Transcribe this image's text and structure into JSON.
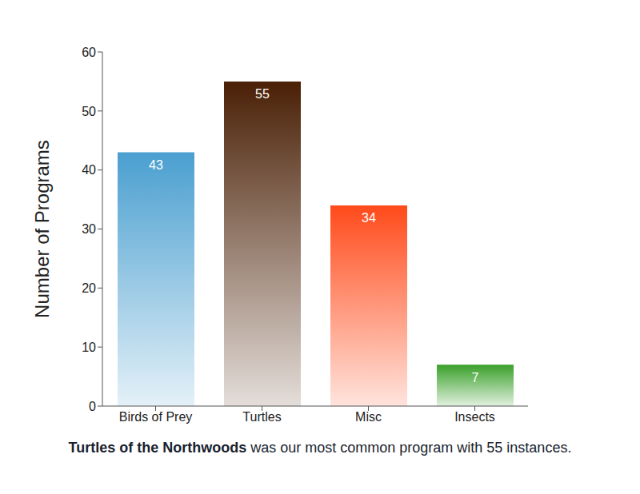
{
  "chart_data": {
    "type": "bar",
    "categories": [
      "Birds of Prey",
      "Turtles",
      "Misc",
      "Insects"
    ],
    "values": [
      43,
      55,
      34,
      7
    ],
    "colors": [
      "#4a9fd0",
      "#4a2006",
      "#ff4a1a",
      "#3aa02a"
    ],
    "ylabel": "Number of Programs",
    "ylim": [
      0,
      60
    ],
    "yticks": [
      0,
      10,
      20,
      30,
      40,
      50,
      60
    ],
    "grid": false,
    "data_labels": true,
    "annotations": [
      "Turtles of the Northwoods",
      "was our most common program with 55 instances."
    ]
  }
}
